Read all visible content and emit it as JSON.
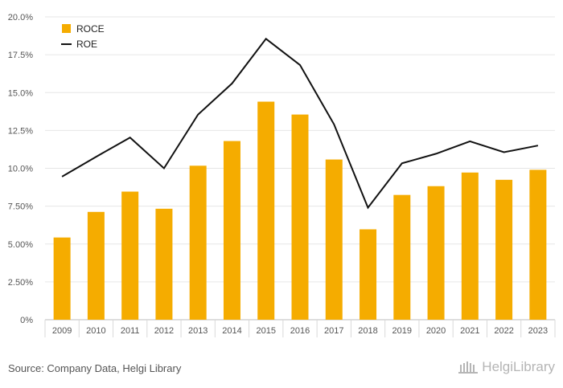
{
  "chart_data": {
    "type": "bar",
    "categories": [
      "2009",
      "2010",
      "2011",
      "2012",
      "2013",
      "2014",
      "2015",
      "2016",
      "2017",
      "2018",
      "2019",
      "2020",
      "2021",
      "2022",
      "2023"
    ],
    "series": [
      {
        "name": "ROCE",
        "type": "bar",
        "color": "#f5ac00",
        "values": [
          5.43,
          7.12,
          8.46,
          7.33,
          10.17,
          11.8,
          14.4,
          13.55,
          10.58,
          5.97,
          8.24,
          8.82,
          9.72,
          9.24,
          9.9
        ]
      },
      {
        "name": "ROE",
        "type": "line",
        "color": "#111111",
        "values": [
          9.45,
          10.76,
          12.03,
          10.0,
          13.55,
          15.6,
          18.55,
          16.82,
          12.9,
          7.4,
          10.33,
          10.96,
          11.78,
          11.06,
          11.5
        ]
      }
    ],
    "y_ticks": [
      "0%",
      "2.50%",
      "5.00%",
      "7.50%",
      "10.0%",
      "12.5%",
      "15.0%",
      "17.5%",
      "20.0%"
    ],
    "ylim": [
      0,
      20
    ],
    "grid": true,
    "legend_position": "top-left"
  },
  "footer": {
    "source": "Source: Company Data, Helgi Library",
    "logo": "HelgiLibrary"
  }
}
